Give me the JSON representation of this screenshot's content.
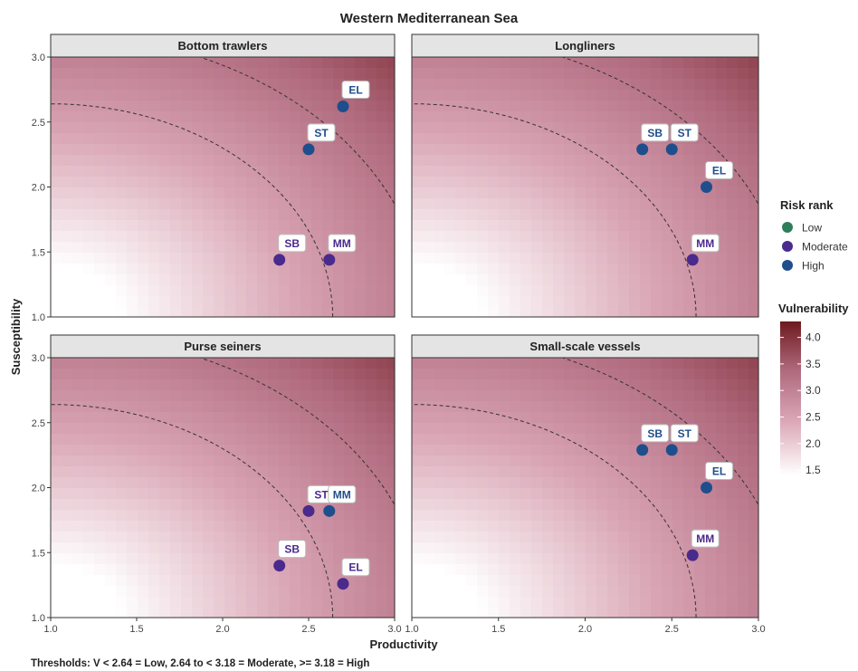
{
  "chart_data": {
    "type": "scatter",
    "title": "Western Mediterranean Sea",
    "xlabel": "Productivity",
    "ylabel": "Susceptibility",
    "xlim": [
      1.0,
      3.0
    ],
    "ylim": [
      1.0,
      3.0
    ],
    "x_ticks": [
      "1.0",
      "1.5",
      "2.0",
      "2.5",
      "3.0"
    ],
    "y_ticks": [
      "1.0",
      "1.5",
      "2.0",
      "2.5",
      "3.0"
    ],
    "background": "vulnerability gradient, V = sqrt((3 - P)^2 + (S - 1)^2) + 1",
    "threshold_curves": [
      2.64,
      3.18
    ],
    "footnote": "Thresholds: V < 2.64 = Low, 2.64 to < 3.18 = Moderate, >= 3.18 = High",
    "risk_legend": {
      "title": "Risk rank",
      "entries": [
        {
          "label": "Low",
          "color": "#2e7d5b"
        },
        {
          "label": "Moderate",
          "color": "#4a2a8c"
        },
        {
          "label": "High",
          "color": "#1f4e8c"
        }
      ]
    },
    "vulnerability_legend": {
      "title": "Vulnerability",
      "ticks": [
        "4.0",
        "3.5",
        "3.0",
        "2.5",
        "2.0",
        "1.5"
      ],
      "range": [
        1.4,
        4.3
      ],
      "colors": [
        "#ffffff",
        "#d9a5b5",
        "#b06a7e",
        "#6e1a1e"
      ]
    },
    "panels": [
      {
        "name": "Bottom trawlers",
        "points": [
          {
            "label": "EL",
            "x": 2.7,
            "y": 2.62,
            "rank": "High"
          },
          {
            "label": "ST",
            "x": 2.5,
            "y": 2.29,
            "rank": "High"
          },
          {
            "label": "SB",
            "x": 2.33,
            "y": 1.44,
            "rank": "Moderate"
          },
          {
            "label": "MM",
            "x": 2.62,
            "y": 1.44,
            "rank": "Moderate"
          }
        ]
      },
      {
        "name": "Longliners",
        "points": [
          {
            "label": "SB",
            "x": 2.33,
            "y": 2.29,
            "rank": "High"
          },
          {
            "label": "ST",
            "x": 2.5,
            "y": 2.29,
            "rank": "High"
          },
          {
            "label": "EL",
            "x": 2.7,
            "y": 2.0,
            "rank": "High"
          },
          {
            "label": "MM",
            "x": 2.62,
            "y": 1.44,
            "rank": "Moderate"
          }
        ]
      },
      {
        "name": "Purse seiners",
        "points": [
          {
            "label": "ST",
            "x": 2.5,
            "y": 1.82,
            "rank": "Moderate"
          },
          {
            "label": "MM",
            "x": 2.62,
            "y": 1.82,
            "rank": "High"
          },
          {
            "label": "SB",
            "x": 2.33,
            "y": 1.4,
            "rank": "Moderate"
          },
          {
            "label": "EL",
            "x": 2.7,
            "y": 1.26,
            "rank": "Moderate"
          }
        ]
      },
      {
        "name": "Small-scale vessels",
        "points": [
          {
            "label": "SB",
            "x": 2.33,
            "y": 2.29,
            "rank": "High"
          },
          {
            "label": "ST",
            "x": 2.5,
            "y": 2.29,
            "rank": "High"
          },
          {
            "label": "EL",
            "x": 2.7,
            "y": 2.0,
            "rank": "High"
          },
          {
            "label": "MM",
            "x": 2.62,
            "y": 1.48,
            "rank": "Moderate"
          }
        ]
      }
    ]
  }
}
